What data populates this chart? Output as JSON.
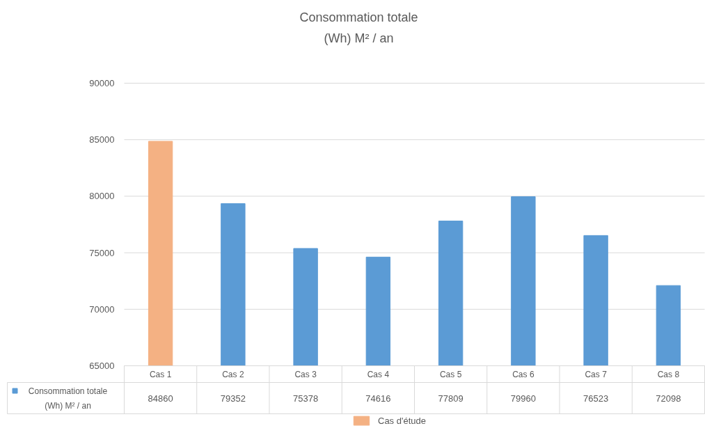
{
  "chart_data": {
    "type": "bar",
    "title": "Consommation totale\n(Wh) M² / an",
    "categories": [
      "Cas 1",
      "Cas 2",
      "Cas 3",
      "Cas 4",
      "Cas 5",
      "Cas 6",
      "Cas 7",
      "Cas 8"
    ],
    "series": [
      {
        "name": "Consommation totale\n(Wh) M² / an",
        "color": "#5b9bd5",
        "values": [
          null,
          79352,
          75378,
          74616,
          77809,
          79960,
          76523,
          72098
        ]
      },
      {
        "name": "Cas d'étude",
        "color": "#f4b183",
        "values": [
          84860,
          null,
          null,
          null,
          null,
          null,
          null,
          null
        ]
      }
    ],
    "ylim": [
      65000,
      90000
    ],
    "yticks": [
      65000,
      70000,
      75000,
      80000,
      85000,
      90000
    ],
    "grid": "y",
    "legend": "bottom",
    "data_labels": true
  }
}
